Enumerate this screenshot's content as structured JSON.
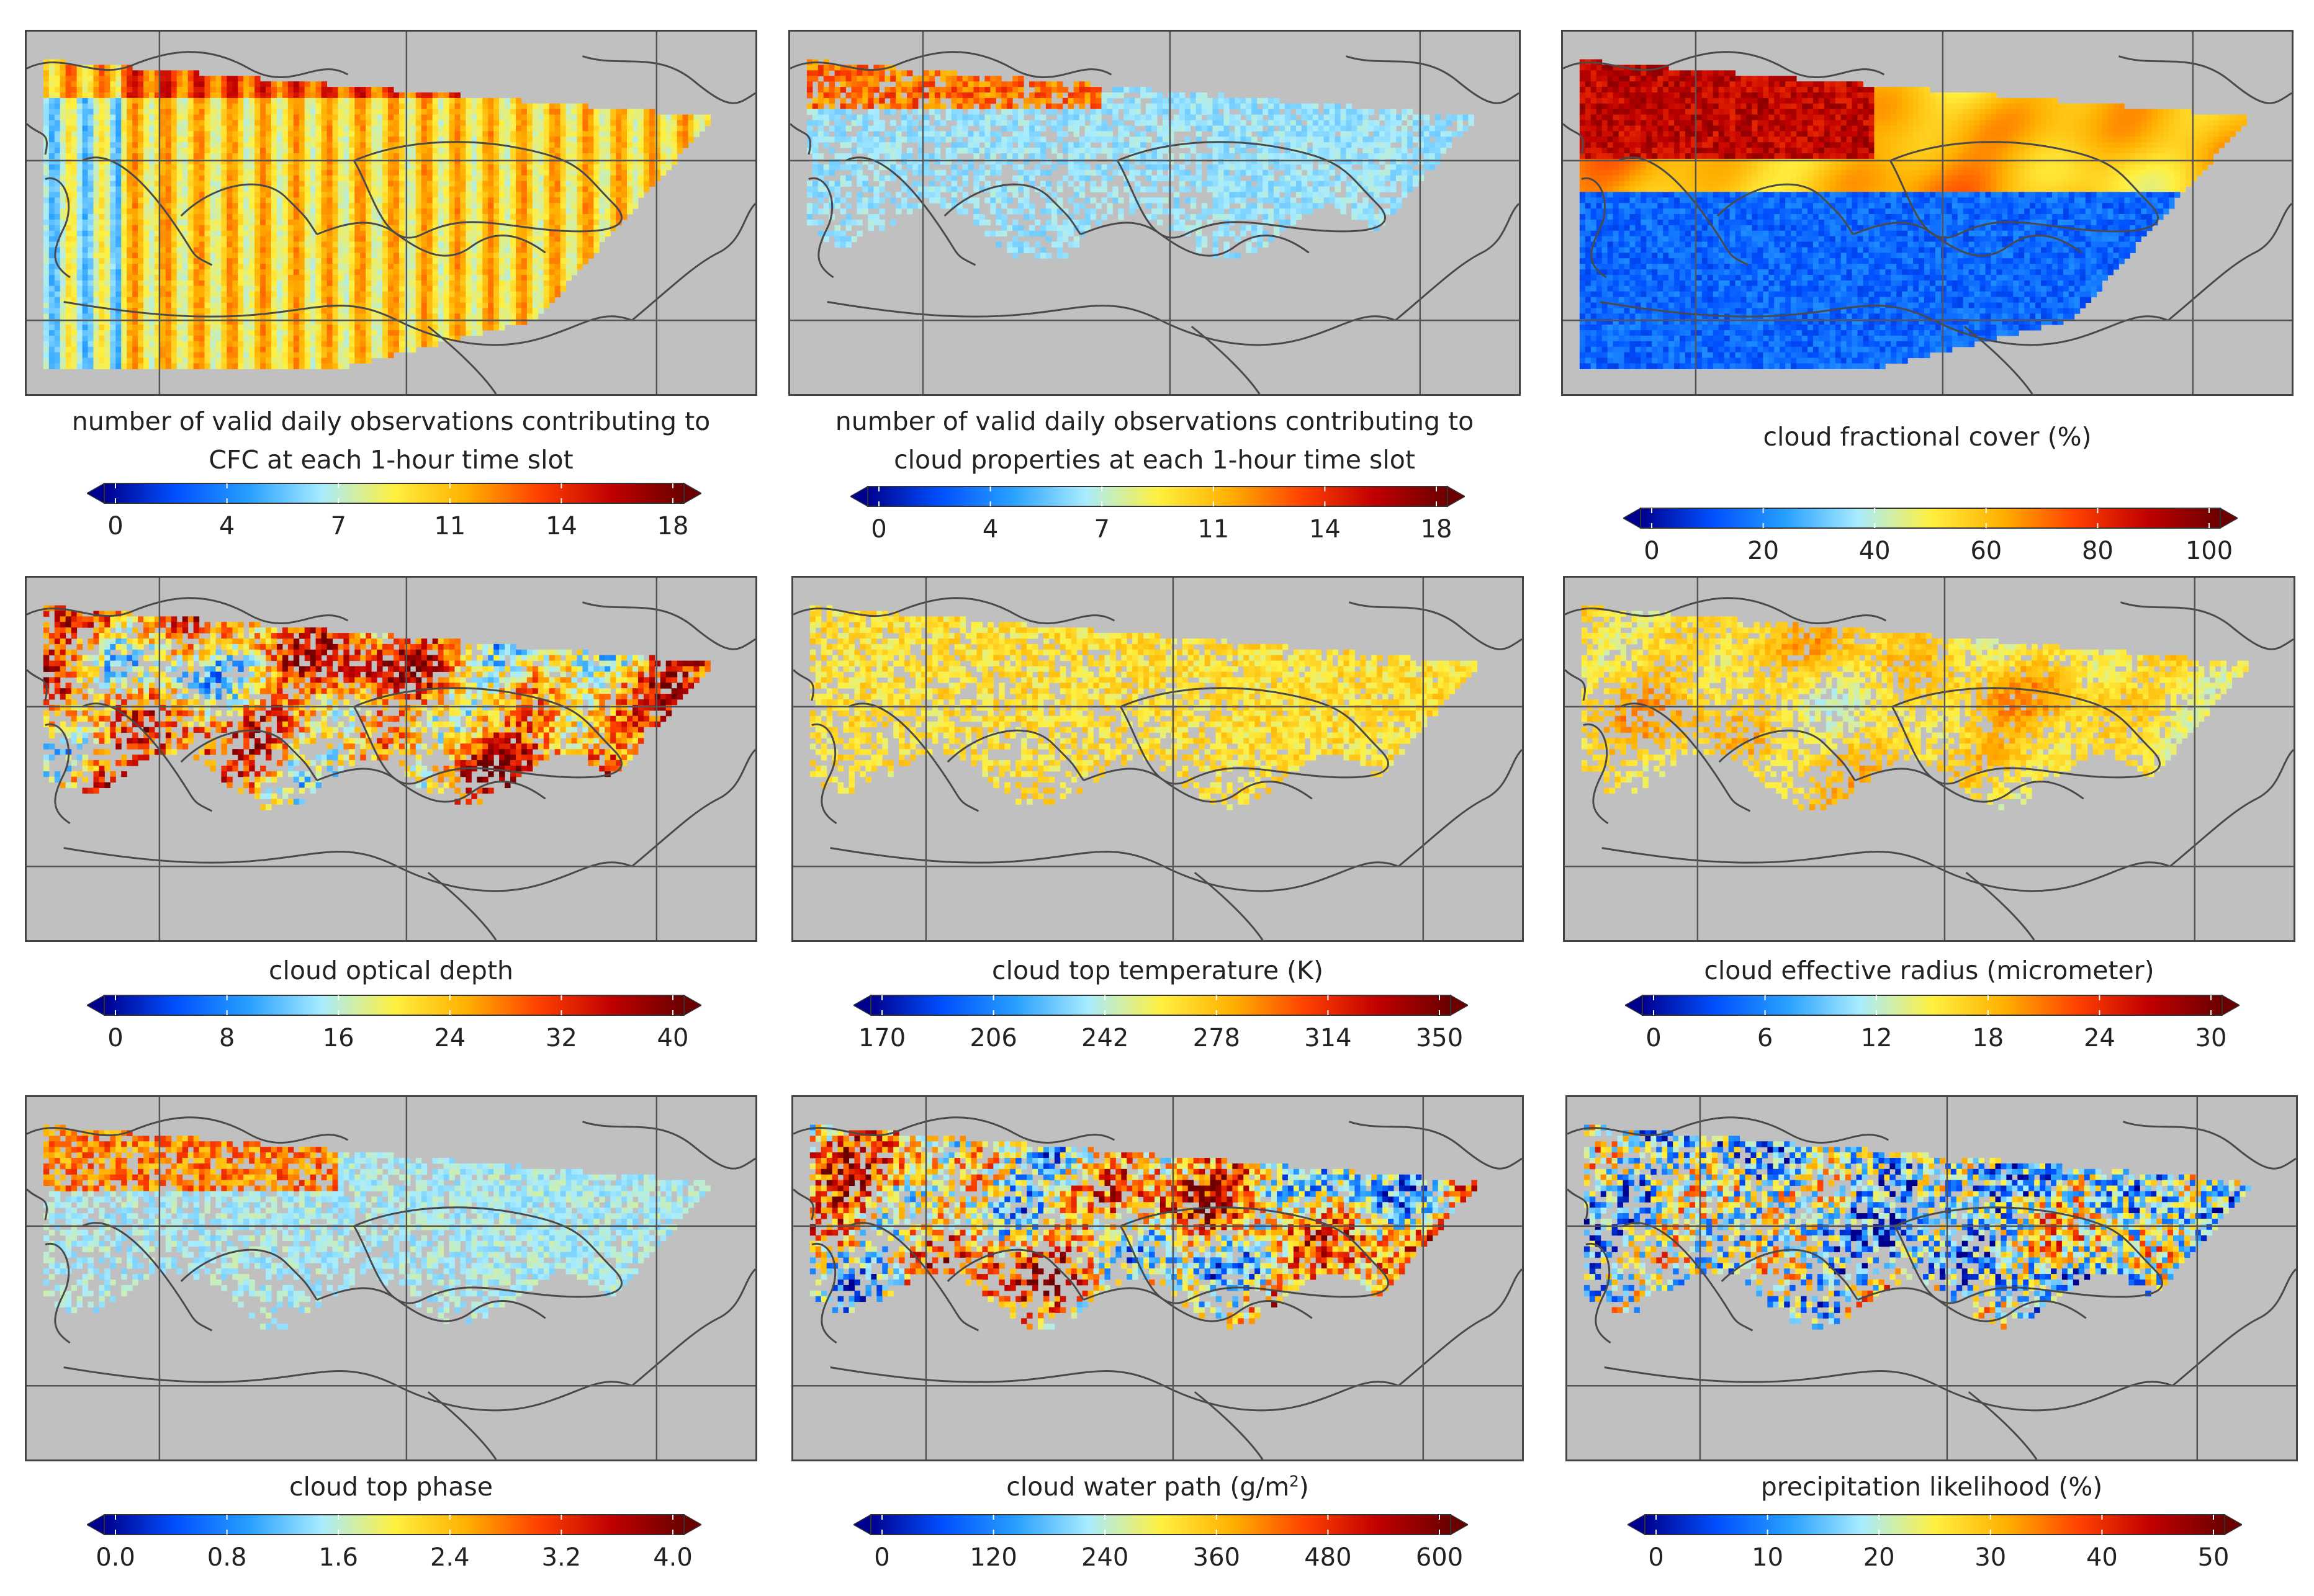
{
  "palette": {
    "background": "#c0c0c0",
    "coastline": "#4a4a4a",
    "grid": "#555555",
    "jet": [
      "#00008f",
      "#0050ff",
      "#28a0ff",
      "#a8ecff",
      "#fff040",
      "#ffb000",
      "#ff4000",
      "#c00000",
      "#6a0000"
    ]
  },
  "panels": [
    {
      "id": "cfc-obs-count",
      "title": "number of valid daily observations contributing to",
      "title2": "CFC at each 1-hour time slot",
      "variant": "count-full",
      "ticks": [
        "0",
        "4",
        "7",
        "11",
        "14",
        "18"
      ]
    },
    {
      "id": "prop-obs-count",
      "title": "number of valid daily observations contributing to",
      "title2": "cloud properties at each 1-hour time slot",
      "variant": "count-partial",
      "ticks": [
        "0",
        "4",
        "7",
        "11",
        "14",
        "18"
      ]
    },
    {
      "id": "cfc",
      "title": "cloud fractional cover (%)",
      "title2": "",
      "variant": "cfc",
      "ticks": [
        "0",
        "20",
        "40",
        "60",
        "80",
        "100"
      ]
    },
    {
      "id": "cot",
      "title": "cloud optical depth",
      "title2": "",
      "variant": "cot",
      "ticks": [
        "0",
        "8",
        "16",
        "24",
        "32",
        "40"
      ]
    },
    {
      "id": "ctt",
      "title": "cloud top temperature (K)",
      "title2": "",
      "variant": "ctt",
      "ticks": [
        "170",
        "206",
        "242",
        "278",
        "314",
        "350"
      ]
    },
    {
      "id": "cer",
      "title": "cloud effective radius (micrometer)",
      "title2": "",
      "variant": "cer",
      "ticks": [
        "0",
        "6",
        "12",
        "18",
        "24",
        "30"
      ]
    },
    {
      "id": "cph",
      "title": "cloud top phase",
      "title2": "",
      "variant": "cph",
      "ticks": [
        "0.0",
        "0.8",
        "1.6",
        "2.4",
        "3.2",
        "4.0"
      ]
    },
    {
      "id": "cwp",
      "title": "cloud water path (g/m",
      "title_sup": "2",
      "title_end": ")",
      "title2": "",
      "variant": "cwp",
      "ticks": [
        "0",
        "120",
        "240",
        "360",
        "480",
        "600"
      ]
    },
    {
      "id": "prlike",
      "title": "precipitation likelihood (%)",
      "title2": "",
      "variant": "pr",
      "ticks": [
        "0",
        "10",
        "20",
        "30",
        "40",
        "50"
      ]
    }
  ]
}
